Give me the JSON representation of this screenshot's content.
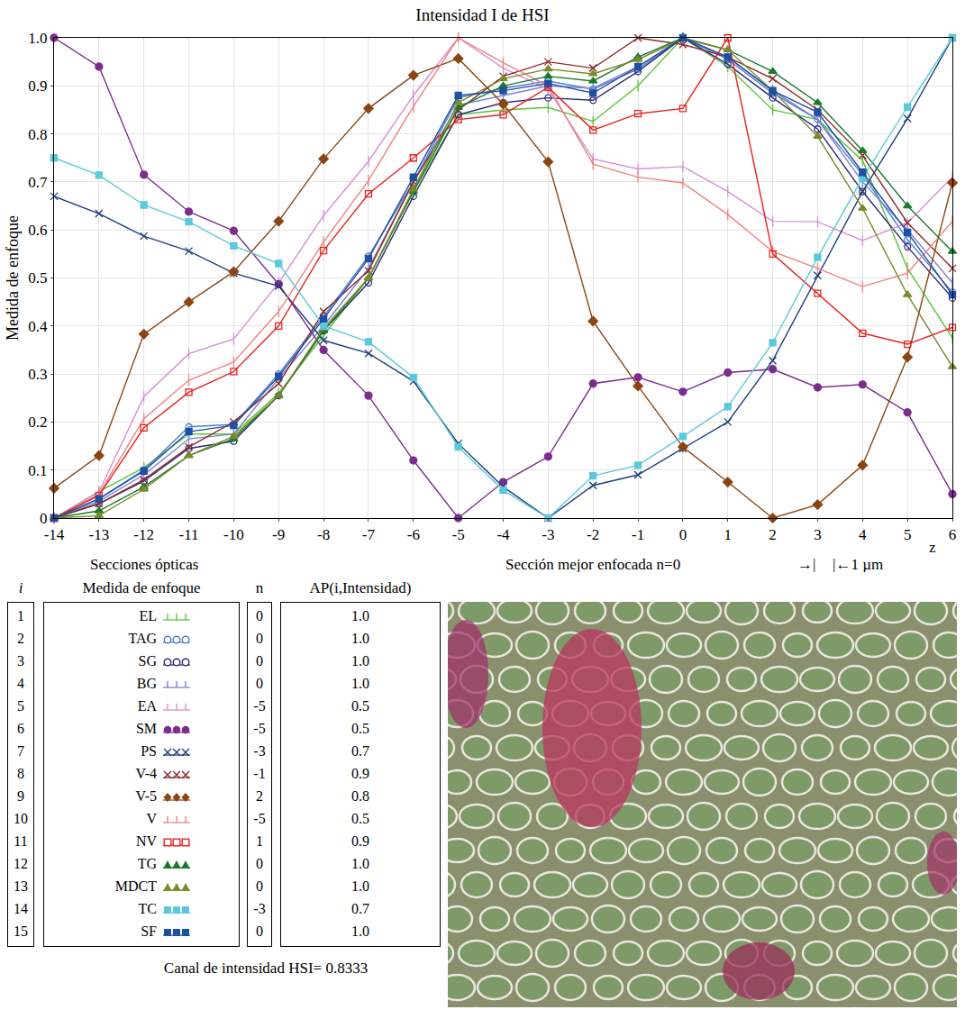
{
  "chart_data": {
    "type": "line",
    "title": "Intensidad I de HSI",
    "ylabel": "Medida de enfoque",
    "xlabel": "Secciones ópticas",
    "annotations": [
      "Sección mejor enfocada n=0",
      "→|",
      "|←1 µm",
      "z"
    ],
    "x": [
      -14,
      -13,
      -12,
      -11,
      -10,
      -9,
      -8,
      -7,
      -6,
      -5,
      -4,
      -3,
      -2,
      -1,
      0,
      1,
      2,
      3,
      4,
      5,
      6
    ],
    "xlim": [
      -14,
      6
    ],
    "xticks": [
      -14,
      -13,
      -12,
      -11,
      -10,
      -9,
      -8,
      -7,
      -6,
      -5,
      -4,
      -3,
      -2,
      -1,
      0,
      1,
      2,
      3,
      4,
      5,
      6
    ],
    "ylim": [
      0,
      1
    ],
    "yticks": [
      0,
      0.1,
      0.2,
      0.3,
      0.4,
      0.5,
      0.6,
      0.7,
      0.8,
      0.9,
      {
        "value": 1,
        "label": "1.0"
      }
    ],
    "grid": true,
    "series": [
      {
        "name": "EL",
        "color": "#5ac43a",
        "marker": "tick",
        "values": [
          0,
          0.055,
          0.105,
          0.175,
          0.175,
          0.26,
          0.38,
          0.5,
          0.68,
          0.84,
          0.85,
          0.855,
          0.826,
          0.9,
          1.0,
          0.94,
          0.85,
          0.83,
          0.745,
          0.52,
          0.375
        ]
      },
      {
        "name": "TAG",
        "color": "#4a7fd0",
        "marker": "circle-open",
        "values": [
          0,
          0.04,
          0.1,
          0.19,
          0.195,
          0.3,
          0.42,
          0.545,
          0.7,
          0.875,
          0.895,
          0.91,
          0.893,
          0.935,
          1.0,
          0.955,
          0.885,
          0.83,
          0.715,
          0.58,
          0.47
        ]
      },
      {
        "name": "SG",
        "color": "#2b2b7a",
        "marker": "circle-open",
        "values": [
          0,
          0.03,
          0.077,
          0.145,
          0.16,
          0.255,
          0.39,
          0.49,
          0.67,
          0.84,
          0.865,
          0.875,
          0.87,
          0.93,
          1.0,
          0.945,
          0.875,
          0.81,
          0.68,
          0.565,
          0.458
        ]
      },
      {
        "name": "BG",
        "color": "#7f7fd8",
        "marker": "tick",
        "values": [
          0,
          0.035,
          0.09,
          0.165,
          0.175,
          0.29,
          0.4,
          0.52,
          0.7,
          0.86,
          0.88,
          0.9,
          0.895,
          0.94,
          1.0,
          0.96,
          0.89,
          0.83,
          0.7,
          0.6,
          0.49
        ]
      },
      {
        "name": "EA",
        "color": "#d58fd5",
        "marker": "tick",
        "values": [
          0,
          0.055,
          0.253,
          0.342,
          0.373,
          0.49,
          0.63,
          0.743,
          0.88,
          1.0,
          0.937,
          0.893,
          0.748,
          0.727,
          0.732,
          0.68,
          0.618,
          0.617,
          0.578,
          0.615,
          0.71
        ]
      },
      {
        "name": "SM",
        "color": "#7b2d8e",
        "marker": "circle",
        "values": [
          1.0,
          0.94,
          0.715,
          0.638,
          0.598,
          0.487,
          0.35,
          0.255,
          0.12,
          0.0,
          0.075,
          0.128,
          0.28,
          0.293,
          0.263,
          0.303,
          0.31,
          0.272,
          0.278,
          0.22,
          0.05
        ]
      },
      {
        "name": "PS",
        "color": "#1f3f7a",
        "marker": "x",
        "values": [
          0.67,
          0.634,
          0.587,
          0.556,
          0.51,
          0.483,
          0.37,
          0.343,
          0.285,
          0.155,
          0.065,
          0.0,
          0.068,
          0.09,
          0.145,
          0.2,
          0.328,
          0.505,
          0.68,
          0.832,
          1.0
        ]
      },
      {
        "name": "V-4",
        "color": "#8b2a2a",
        "marker": "x",
        "values": [
          0,
          0.03,
          0.08,
          0.148,
          0.2,
          0.28,
          0.43,
          0.515,
          0.7,
          0.85,
          0.92,
          0.95,
          0.937,
          1.0,
          0.986,
          0.96,
          0.915,
          0.85,
          0.755,
          0.615,
          0.52
        ]
      },
      {
        "name": "V-5",
        "color": "#8b4513",
        "marker": "diamond",
        "values": [
          0.062,
          0.13,
          0.383,
          0.45,
          0.513,
          0.618,
          0.748,
          0.853,
          0.922,
          0.957,
          0.862,
          0.742,
          0.41,
          0.275,
          0.148,
          0.075,
          0.0,
          0.028,
          0.11,
          0.335,
          0.698
        ]
      },
      {
        "name": "V",
        "color": "#f08080",
        "marker": "tick",
        "values": [
          0,
          0.05,
          0.207,
          0.287,
          0.325,
          0.43,
          0.575,
          0.703,
          0.857,
          1.0,
          0.948,
          0.9,
          0.737,
          0.71,
          0.698,
          0.632,
          0.555,
          0.52,
          0.482,
          0.51,
          0.618
        ]
      },
      {
        "name": "NV",
        "color": "#e8231e",
        "marker": "square-open",
        "values": [
          0,
          0.047,
          0.188,
          0.262,
          0.305,
          0.4,
          0.557,
          0.675,
          0.75,
          0.83,
          0.84,
          0.897,
          0.808,
          0.842,
          0.853,
          1.0,
          0.55,
          0.468,
          0.385,
          0.362,
          0.397
        ]
      },
      {
        "name": "TG",
        "color": "#1a7a2a",
        "marker": "triangle",
        "values": [
          0,
          0.015,
          0.065,
          0.13,
          0.165,
          0.255,
          0.39,
          0.5,
          0.68,
          0.855,
          0.9,
          0.92,
          0.91,
          0.96,
          1.0,
          0.975,
          0.93,
          0.865,
          0.765,
          0.65,
          0.555
        ]
      },
      {
        "name": "MDCT",
        "color": "#7a8a2a",
        "marker": "triangle",
        "values": [
          0,
          0.005,
          0.06,
          0.13,
          0.17,
          0.255,
          0.395,
          0.5,
          0.685,
          0.865,
          0.915,
          0.935,
          0.925,
          0.955,
          0.998,
          0.975,
          0.89,
          0.795,
          0.645,
          0.465,
          0.315
        ]
      },
      {
        "name": "TC",
        "color": "#5bc8dc",
        "marker": "square",
        "values": [
          0.75,
          0.714,
          0.652,
          0.617,
          0.567,
          0.53,
          0.4,
          0.367,
          0.293,
          0.148,
          0.058,
          0.0,
          0.088,
          0.11,
          0.17,
          0.232,
          0.365,
          0.543,
          0.708,
          0.856,
          1.0
        ]
      },
      {
        "name": "SF",
        "color": "#1f4fa0",
        "marker": "square",
        "values": [
          0,
          0.04,
          0.098,
          0.18,
          0.193,
          0.295,
          0.415,
          0.54,
          0.71,
          0.88,
          0.89,
          0.905,
          0.885,
          0.94,
          1.0,
          0.96,
          0.89,
          0.845,
          0.72,
          0.595,
          0.465
        ]
      }
    ]
  },
  "table": {
    "header": [
      "i",
      "Medida de enfoque",
      "n",
      "AP(i,Intensidad)"
    ],
    "rows": [
      {
        "i": 1,
        "measure": "EL",
        "n": 0,
        "ap": "1.0"
      },
      {
        "i": 2,
        "measure": "TAG",
        "n": 0,
        "ap": "1.0"
      },
      {
        "i": 3,
        "measure": "SG",
        "n": 0,
        "ap": "1.0"
      },
      {
        "i": 4,
        "measure": "BG",
        "n": 0,
        "ap": "1.0"
      },
      {
        "i": 5,
        "measure": "EA",
        "n": -5,
        "ap": "0.5"
      },
      {
        "i": 6,
        "measure": "SM",
        "n": -5,
        "ap": "0.5"
      },
      {
        "i": 7,
        "measure": "PS",
        "n": -3,
        "ap": "0.7"
      },
      {
        "i": 8,
        "measure": "V-4",
        "n": -1,
        "ap": "0.9"
      },
      {
        "i": 9,
        "measure": "V-5",
        "n": 2,
        "ap": "0.8"
      },
      {
        "i": 10,
        "measure": "V",
        "n": -5,
        "ap": "0.5"
      },
      {
        "i": 11,
        "measure": "NV",
        "n": 1,
        "ap": "0.9"
      },
      {
        "i": 12,
        "measure": "TG",
        "n": 0,
        "ap": "1.0"
      },
      {
        "i": 13,
        "measure": "MDCT",
        "n": 0,
        "ap": "1.0"
      },
      {
        "i": 14,
        "measure": "TC",
        "n": -3,
        "ap": "0.7"
      },
      {
        "i": 15,
        "measure": "SF",
        "n": 0,
        "ap": "1.0"
      }
    ],
    "footer": "Canal de intensidad HSI= 0.8333"
  }
}
